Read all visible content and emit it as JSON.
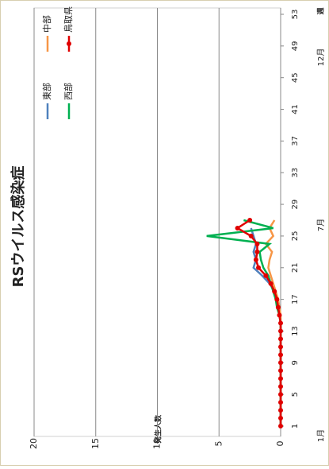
{
  "chart_data": {
    "type": "line",
    "title": "RSウイルス感染症",
    "y_label": "発生人数",
    "x_label": "週",
    "month_labels": [
      "1月",
      "7月",
      "12月"
    ],
    "x": [
      1,
      2,
      3,
      4,
      5,
      6,
      7,
      8,
      9,
      10,
      11,
      12,
      13,
      14,
      15,
      16,
      17,
      18,
      19,
      20,
      21,
      22,
      23,
      24,
      25,
      26,
      27
    ],
    "xlim": [
      1,
      53
    ],
    "xticks": [
      1,
      5,
      9,
      13,
      17,
      21,
      25,
      29,
      33,
      37,
      41,
      45,
      49,
      53
    ],
    "ylim": [
      0,
      20
    ],
    "yticks": [
      0,
      5,
      10,
      15,
      20
    ],
    "grid": true,
    "series": [
      {
        "name": "東部",
        "color": "#4f81bd",
        "values": [
          0,
          0,
          0,
          0,
          0,
          0,
          0,
          0,
          0,
          0,
          0,
          0,
          0,
          0,
          0.1,
          0.2,
          0.3,
          0.5,
          0.9,
          1.5,
          2.2,
          2.0,
          2.2,
          2.0,
          2.2,
          2.4,
          null
        ]
      },
      {
        "name": "中部",
        "color": "#f79646",
        "values": [
          0,
          0,
          0,
          0,
          0,
          0,
          0,
          0,
          0,
          0,
          0,
          0,
          0,
          0,
          0,
          0.1,
          0.2,
          0.4,
          0.6,
          0.8,
          1.0,
          0.9,
          0.7,
          1.2,
          0.6,
          0.9,
          0.5
        ]
      },
      {
        "name": "西部",
        "color": "#00b050",
        "values": [
          0,
          0,
          0,
          0,
          0,
          0,
          0,
          0,
          0,
          0,
          0,
          0,
          0,
          0,
          0.1,
          0.3,
          0.4,
          0.6,
          0.8,
          1.0,
          1.4,
          1.6,
          1.7,
          0.9,
          6.0,
          0.6,
          3.0
        ]
      },
      {
        "name": "鳥取県",
        "color": "#e00000",
        "marker": true,
        "values": [
          0,
          0,
          0,
          0,
          0,
          0,
          0,
          0,
          0,
          0,
          0,
          0,
          0,
          0,
          0.1,
          0.2,
          0.3,
          0.5,
          0.8,
          1.2,
          1.8,
          2.0,
          1.9,
          1.9,
          2.4,
          3.5,
          2.5
        ]
      }
    ]
  }
}
